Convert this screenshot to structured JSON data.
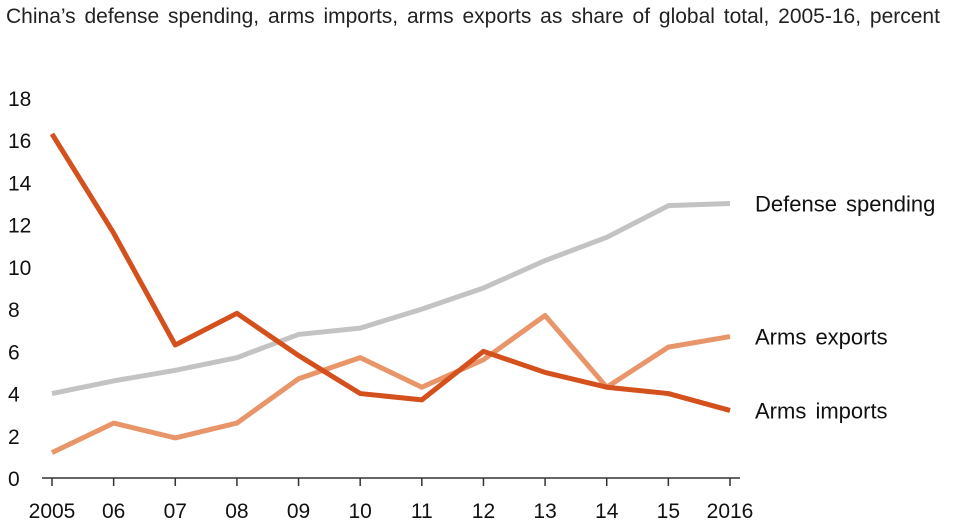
{
  "chart_data": {
    "type": "line",
    "title": "China’s defense spending, arms imports, arms exports as share of global total, 2005-16,  percent",
    "xlabel": "",
    "ylabel": "",
    "ylim": [
      0,
      18
    ],
    "yticks": [
      "0",
      "2",
      "4",
      "6",
      "8",
      "10",
      "12",
      "14",
      "16",
      "18"
    ],
    "categories": [
      "2005",
      "06",
      "07",
      "08",
      "09",
      "10",
      "11",
      "12",
      "13",
      "14",
      "15",
      "2016"
    ],
    "grid": false,
    "legend": "inline-right",
    "series": [
      {
        "name": "Defense spending",
        "color": "#c3c3c3",
        "values": [
          4.0,
          4.6,
          5.1,
          5.7,
          6.8,
          7.1,
          8.0,
          9.0,
          10.3,
          11.4,
          12.9,
          13.0
        ]
      },
      {
        "name": "Arms exports",
        "color": "#e8956a",
        "values": [
          1.2,
          2.6,
          1.9,
          2.6,
          4.7,
          5.7,
          4.3,
          5.6,
          7.7,
          4.3,
          6.2,
          6.7
        ]
      },
      {
        "name": "Arms imports",
        "color": "#d4501c",
        "values": [
          16.3,
          11.6,
          6.3,
          7.8,
          5.8,
          4.0,
          3.7,
          6.0,
          5.0,
          4.3,
          4.0,
          3.2
        ]
      }
    ]
  }
}
